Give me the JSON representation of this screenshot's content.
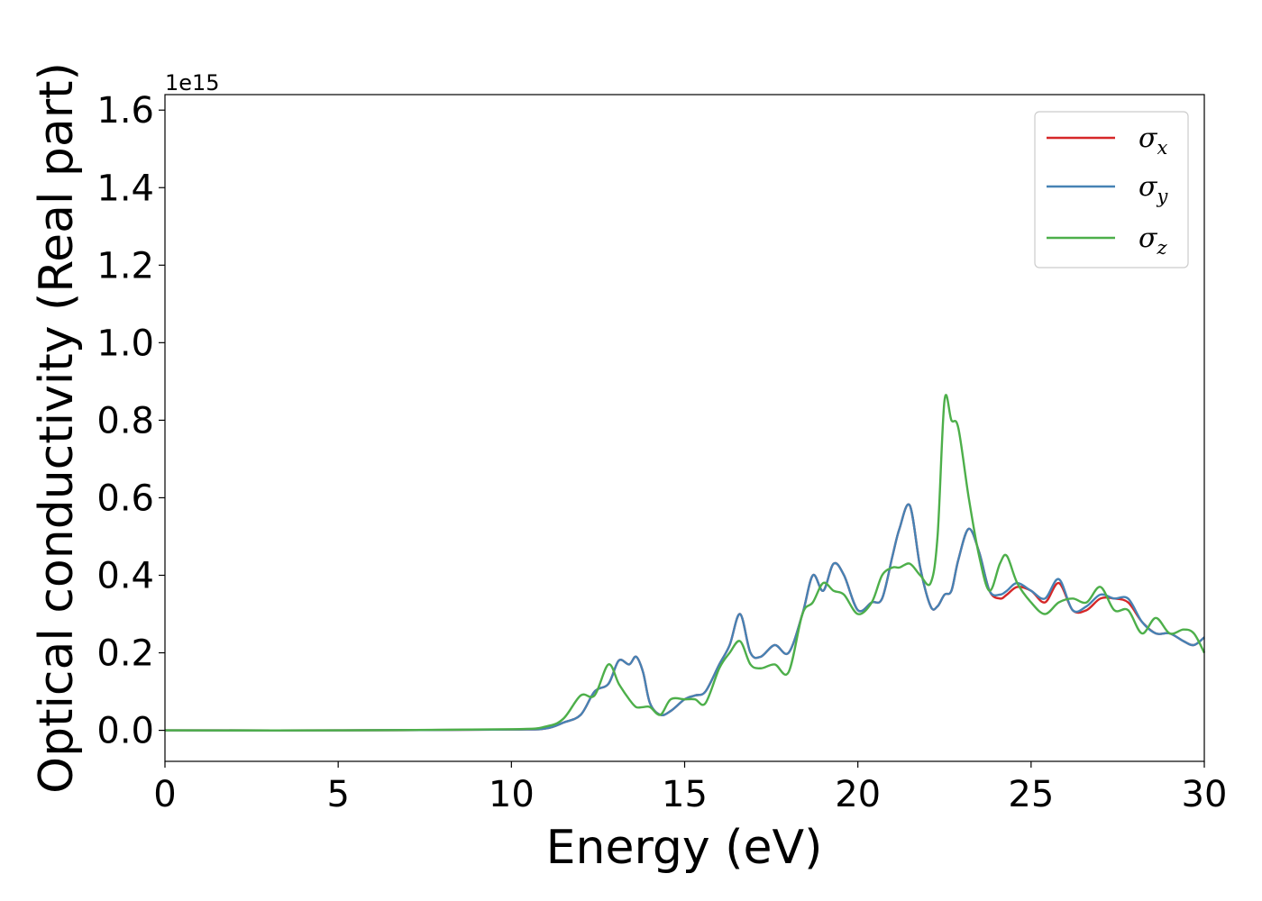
{
  "chart_data": {
    "type": "line",
    "xlabel": "Energy (eV)",
    "ylabel": "Optical conductivity (Real part)",
    "y_offset_label": "1e15",
    "y_scale_exponent": 15,
    "xlim": [
      0,
      30
    ],
    "ylim": [
      -0.08,
      1.64
    ],
    "x_ticks": [
      0,
      5,
      10,
      15,
      20,
      25,
      30
    ],
    "x_tick_labels": [
      "0",
      "5",
      "10",
      "15",
      "20",
      "25",
      "30"
    ],
    "y_ticks": [
      0.0,
      0.2,
      0.4,
      0.6,
      0.8,
      1.0,
      1.2,
      1.4,
      1.6
    ],
    "y_tick_labels": [
      "0.0",
      "0.2",
      "0.4",
      "0.6",
      "0.8",
      "1.0",
      "1.2",
      "1.4",
      "1.6"
    ],
    "grid": false,
    "legend_position": "top-right",
    "x": [
      0,
      5,
      10,
      11,
      11.5,
      12,
      12.4,
      12.8,
      13.1,
      13.4,
      13.6,
      13.8,
      14,
      14.3,
      14.6,
      15,
      15.3,
      15.6,
      16,
      16.3,
      16.6,
      16.9,
      17.2,
      17.6,
      18,
      18.4,
      18.7,
      19,
      19.3,
      19.6,
      20,
      20.4,
      20.7,
      21,
      21.2,
      21.5,
      21.8,
      22.1,
      22.3,
      22.5,
      22.7,
      22.9,
      23.2,
      23.5,
      23.8,
      24.1,
      24.3,
      24.6,
      25,
      25.4,
      25.8,
      26.2,
      26.6,
      27,
      27.4,
      27.8,
      28.2,
      28.6,
      29,
      29.4,
      29.7,
      30
    ],
    "series": [
      {
        "name": "σx",
        "color": "#d62728",
        "values": [
          0,
          0,
          0.002,
          0.005,
          0.02,
          0.04,
          0.1,
          0.12,
          0.18,
          0.17,
          0.19,
          0.15,
          0.07,
          0.04,
          0.05,
          0.08,
          0.09,
          0.1,
          0.17,
          0.22,
          0.3,
          0.2,
          0.19,
          0.22,
          0.2,
          0.3,
          0.4,
          0.36,
          0.43,
          0.4,
          0.31,
          0.33,
          0.34,
          0.45,
          0.52,
          0.58,
          0.42,
          0.32,
          0.32,
          0.35,
          0.36,
          0.44,
          0.52,
          0.46,
          0.36,
          0.34,
          0.35,
          0.37,
          0.36,
          0.33,
          0.38,
          0.31,
          0.31,
          0.34,
          0.34,
          0.33,
          0.28,
          0.25,
          0.25,
          0.23,
          0.22,
          0.24
        ]
      },
      {
        "name": "σy",
        "color": "#4682b4",
        "values": [
          0,
          0,
          0.002,
          0.005,
          0.02,
          0.04,
          0.1,
          0.12,
          0.18,
          0.17,
          0.19,
          0.15,
          0.07,
          0.04,
          0.05,
          0.08,
          0.09,
          0.1,
          0.17,
          0.22,
          0.3,
          0.2,
          0.19,
          0.22,
          0.2,
          0.3,
          0.4,
          0.36,
          0.43,
          0.4,
          0.31,
          0.33,
          0.34,
          0.45,
          0.52,
          0.58,
          0.42,
          0.32,
          0.32,
          0.35,
          0.36,
          0.44,
          0.52,
          0.46,
          0.36,
          0.35,
          0.36,
          0.38,
          0.36,
          0.34,
          0.39,
          0.31,
          0.32,
          0.35,
          0.34,
          0.34,
          0.28,
          0.25,
          0.25,
          0.23,
          0.22,
          0.24
        ]
      },
      {
        "name": "σz",
        "color": "#4daf4a",
        "values": [
          0,
          0,
          0.003,
          0.01,
          0.03,
          0.09,
          0.09,
          0.17,
          0.12,
          0.08,
          0.06,
          0.06,
          0.06,
          0.04,
          0.08,
          0.08,
          0.08,
          0.07,
          0.16,
          0.2,
          0.23,
          0.17,
          0.16,
          0.17,
          0.15,
          0.3,
          0.33,
          0.38,
          0.36,
          0.35,
          0.3,
          0.33,
          0.4,
          0.42,
          0.42,
          0.43,
          0.4,
          0.38,
          0.5,
          0.85,
          0.8,
          0.78,
          0.6,
          0.45,
          0.36,
          0.43,
          0.45,
          0.38,
          0.33,
          0.3,
          0.33,
          0.34,
          0.33,
          0.37,
          0.31,
          0.31,
          0.25,
          0.29,
          0.25,
          0.26,
          0.25,
          0.2
        ]
      }
    ]
  }
}
